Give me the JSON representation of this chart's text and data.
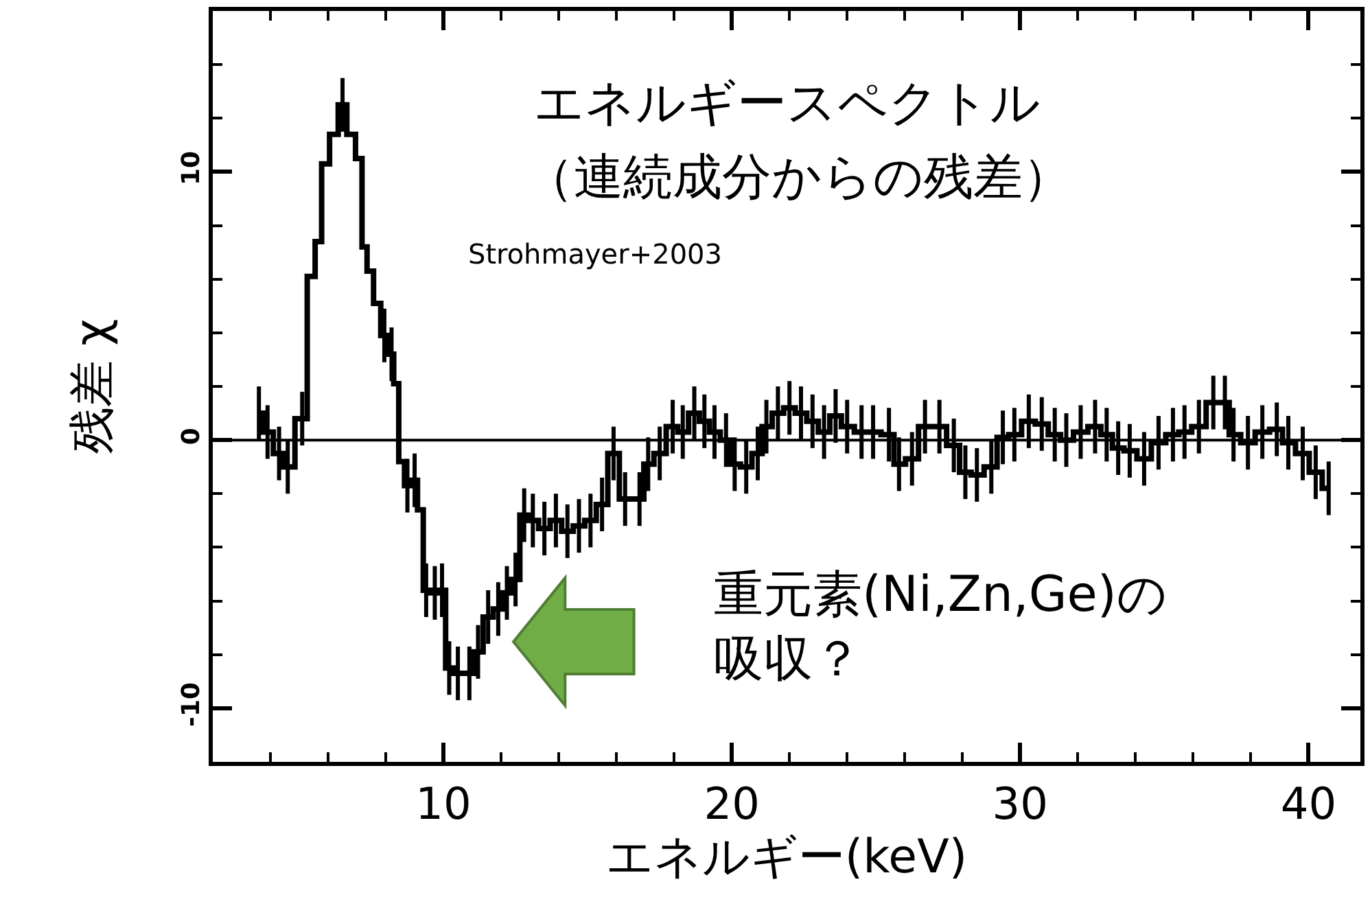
{
  "chart_data": {
    "type": "step",
    "title": "エネルギースペクトル",
    "subtitle": "（連続成分からの残差）",
    "xlabel": "エネルギー(keV)",
    "ylabel": "残差 χ",
    "annotations": [
      "Strohmayer+2003",
      "重元素(Ni,Zn,Ge)の吸収？"
    ],
    "series": [
      {
        "color": "#000000",
        "x": [
          3.6,
          3.9,
          4.3,
          4.6,
          5.1,
          5.45,
          5.65,
          5.9,
          6.2,
          6.5,
          6.8,
          7.1,
          7.25,
          7.45,
          7.7,
          7.95,
          8.2,
          8.35,
          8.55,
          8.75,
          9.0,
          9.2,
          9.4,
          9.7,
          9.95,
          10.2,
          10.5,
          10.9,
          11.2,
          11.55,
          11.9,
          12.2,
          12.5,
          12.8,
          13.1,
          13.5,
          13.9,
          14.3,
          14.7,
          15.1,
          15.5,
          15.9,
          16.3,
          16.8,
          17.1,
          17.5,
          17.95,
          18.3,
          18.7,
          19.05,
          19.4,
          19.8,
          20.1,
          20.5,
          20.9,
          21.2,
          21.6,
          22.0,
          22.4,
          22.8,
          23.2,
          23.6,
          24.0,
          24.5,
          24.9,
          25.45,
          25.8,
          26.25,
          26.7,
          27.2,
          27.7,
          28.1,
          28.5,
          29.0,
          29.4,
          29.8,
          30.3,
          30.75,
          31.2,
          31.6,
          32.1,
          32.6,
          33.0,
          33.4,
          33.8,
          34.3,
          34.8,
          35.3,
          35.7,
          36.2,
          36.7,
          37.1,
          37.4,
          37.9,
          38.4,
          38.9,
          39.3,
          39.8,
          40.25,
          40.7
        ],
        "values": [
          1.0,
          0.3,
          -0.5,
          -1.0,
          0.8,
          6.1,
          7.4,
          10.3,
          11.4,
          12.5,
          11.4,
          10.5,
          7.2,
          6.3,
          5.1,
          3.9,
          3.2,
          2.1,
          -0.8,
          -1.7,
          -1.5,
          -2.6,
          -5.6,
          -5.7,
          -5.6,
          -8.5,
          -8.7,
          -8.7,
          -7.9,
          -6.6,
          -6.3,
          -5.7,
          -5.2,
          -2.8,
          -3.0,
          -3.3,
          -3.0,
          -3.4,
          -3.2,
          -3.0,
          -2.4,
          -0.5,
          -2.2,
          -2.2,
          -0.9,
          -0.5,
          0.5,
          0.3,
          1.0,
          0.7,
          0.3,
          0.0,
          -0.9,
          -1.0,
          -0.5,
          0.5,
          1.0,
          1.2,
          1.0,
          0.7,
          0.3,
          0.9,
          0.5,
          0.3,
          0.3,
          0.2,
          -0.9,
          -0.7,
          0.5,
          0.5,
          -0.2,
          -1.2,
          -1.3,
          -1.0,
          0.1,
          0.2,
          0.7,
          0.6,
          0.2,
          0.0,
          0.3,
          0.5,
          0.2,
          -0.3,
          -0.4,
          -0.7,
          -0.1,
          0.2,
          0.3,
          0.5,
          1.4,
          1.4,
          0.2,
          -0.1,
          0.3,
          0.4,
          -0.1,
          -0.5,
          -1.2,
          -1.8
        ],
        "errors": [
          1,
          1,
          1,
          1,
          1,
          null,
          null,
          null,
          null,
          1,
          null,
          null,
          null,
          null,
          null,
          1,
          1,
          null,
          null,
          1,
          1,
          null,
          1,
          1,
          1,
          1,
          1,
          1,
          1,
          1,
          1,
          1,
          1,
          1,
          1,
          1,
          1,
          1,
          1,
          1,
          1,
          1,
          1,
          1,
          1,
          1,
          1,
          1,
          1,
          1,
          1,
          1,
          1,
          1,
          1,
          1,
          1,
          1,
          1,
          1,
          1,
          1,
          1,
          1,
          1,
          1,
          1,
          1,
          1,
          1,
          1,
          1,
          1,
          1,
          1,
          1,
          1,
          1,
          1,
          1,
          1,
          1,
          1,
          1,
          1,
          1,
          1,
          1,
          1,
          1,
          1,
          1,
          1,
          1,
          1,
          1,
          1,
          1,
          1,
          1
        ]
      }
    ],
    "xlim": [
      2.0,
      41.8
    ],
    "xticks": [
      {
        "value": 4,
        "label": null
      },
      {
        "value": 6,
        "label": null
      },
      {
        "value": 8,
        "label": null
      },
      10,
      {
        "value": 12,
        "label": null
      },
      {
        "value": 14,
        "label": null
      },
      {
        "value": 16,
        "label": null
      },
      {
        "value": 18,
        "label": null
      },
      20,
      {
        "value": 22,
        "label": null
      },
      {
        "value": 24,
        "label": null
      },
      {
        "value": 26,
        "label": null
      },
      {
        "value": 28,
        "label": null
      },
      30,
      {
        "value": 32,
        "label": null
      },
      {
        "value": 34,
        "label": null
      },
      {
        "value": 36,
        "label": null
      },
      {
        "value": 38,
        "label": null
      },
      40
    ],
    "ylim": [
      -12.0,
      16.0
    ],
    "yticks": [
      {
        "value": -8,
        "label": null
      },
      {
        "value": -6,
        "label": null
      },
      {
        "value": -4,
        "label": null
      },
      {
        "value": -2,
        "label": null
      },
      -10,
      0,
      10,
      {
        "value": 2,
        "label": null
      },
      {
        "value": 4,
        "label": null
      },
      {
        "value": 6,
        "label": null
      },
      {
        "value": 8,
        "label": null
      },
      {
        "value": 12,
        "label": null
      },
      {
        "value": 14,
        "label": null
      }
    ],
    "ref_lines": [
      {
        "axis": "y",
        "value": 0,
        "color": "#000000"
      }
    ],
    "marker": "none",
    "line_style": "solid"
  }
}
